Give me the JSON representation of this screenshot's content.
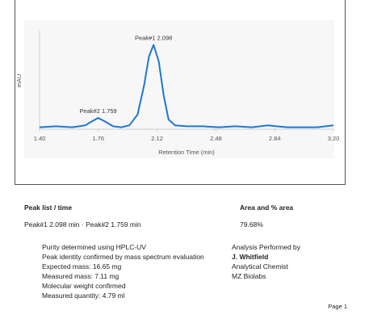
{
  "chart_data": {
    "type": "line",
    "x_label": "Retention Time (min)",
    "y_label": "mAU",
    "color": "#1f77d0",
    "x": [
      1.4,
      1.5,
      1.6,
      1.68,
      1.72,
      1.759,
      1.8,
      1.85,
      1.9,
      1.95,
      2.0,
      2.04,
      2.07,
      2.098,
      2.13,
      2.16,
      2.19,
      2.23,
      2.3,
      2.4,
      2.5,
      2.6,
      2.7,
      2.8,
      2.85,
      2.92,
      3.0,
      3.1,
      3.2
    ],
    "values": [
      2,
      3,
      2,
      4,
      8,
      11.7,
      8,
      3,
      2,
      4,
      15,
      45,
      75,
      87,
      70,
      35,
      10,
      4,
      3,
      3,
      2,
      3,
      2,
      4,
      3,
      2,
      2,
      2,
      4
    ],
    "xlim": [
      1.4,
      3.2
    ],
    "ylim": [
      0,
      100
    ],
    "xticks": [
      {
        "value": 1.4,
        "label": "1.40"
      },
      1.76,
      2.12,
      2.48,
      2.84,
      {
        "value": 3.2,
        "label": "3.20"
      }
    ],
    "annotations": [
      {
        "text": "Peak#1 2.098",
        "x": 2.098
      },
      {
        "text": "Peak#2 1.759",
        "x": 1.759
      }
    ]
  },
  "peak_table": {
    "headers": [
      "Peak list / time",
      "Area and % area"
    ],
    "rows": [
      [
        "Peak#1 2.098 min · Peak#2 1.759 min",
        "79.68%"
      ]
    ]
  },
  "notes": [
    "Purity determined using HPLC-UV",
    "Peak identity confirmed by mass spectrum evaluation",
    "Expected mass: 16.65 mg",
    "Measured mass: 7.11 mg",
    "Molecular weight confirmed",
    "Measured quantity: 4.79 ml"
  ],
  "analysis": {
    "label": "Analysis Performed by",
    "name": "J. Whitfield",
    "role": "Analytical Chemist",
    "org": "MZ Biolabs"
  },
  "footer": {
    "page": "Page 1"
  }
}
